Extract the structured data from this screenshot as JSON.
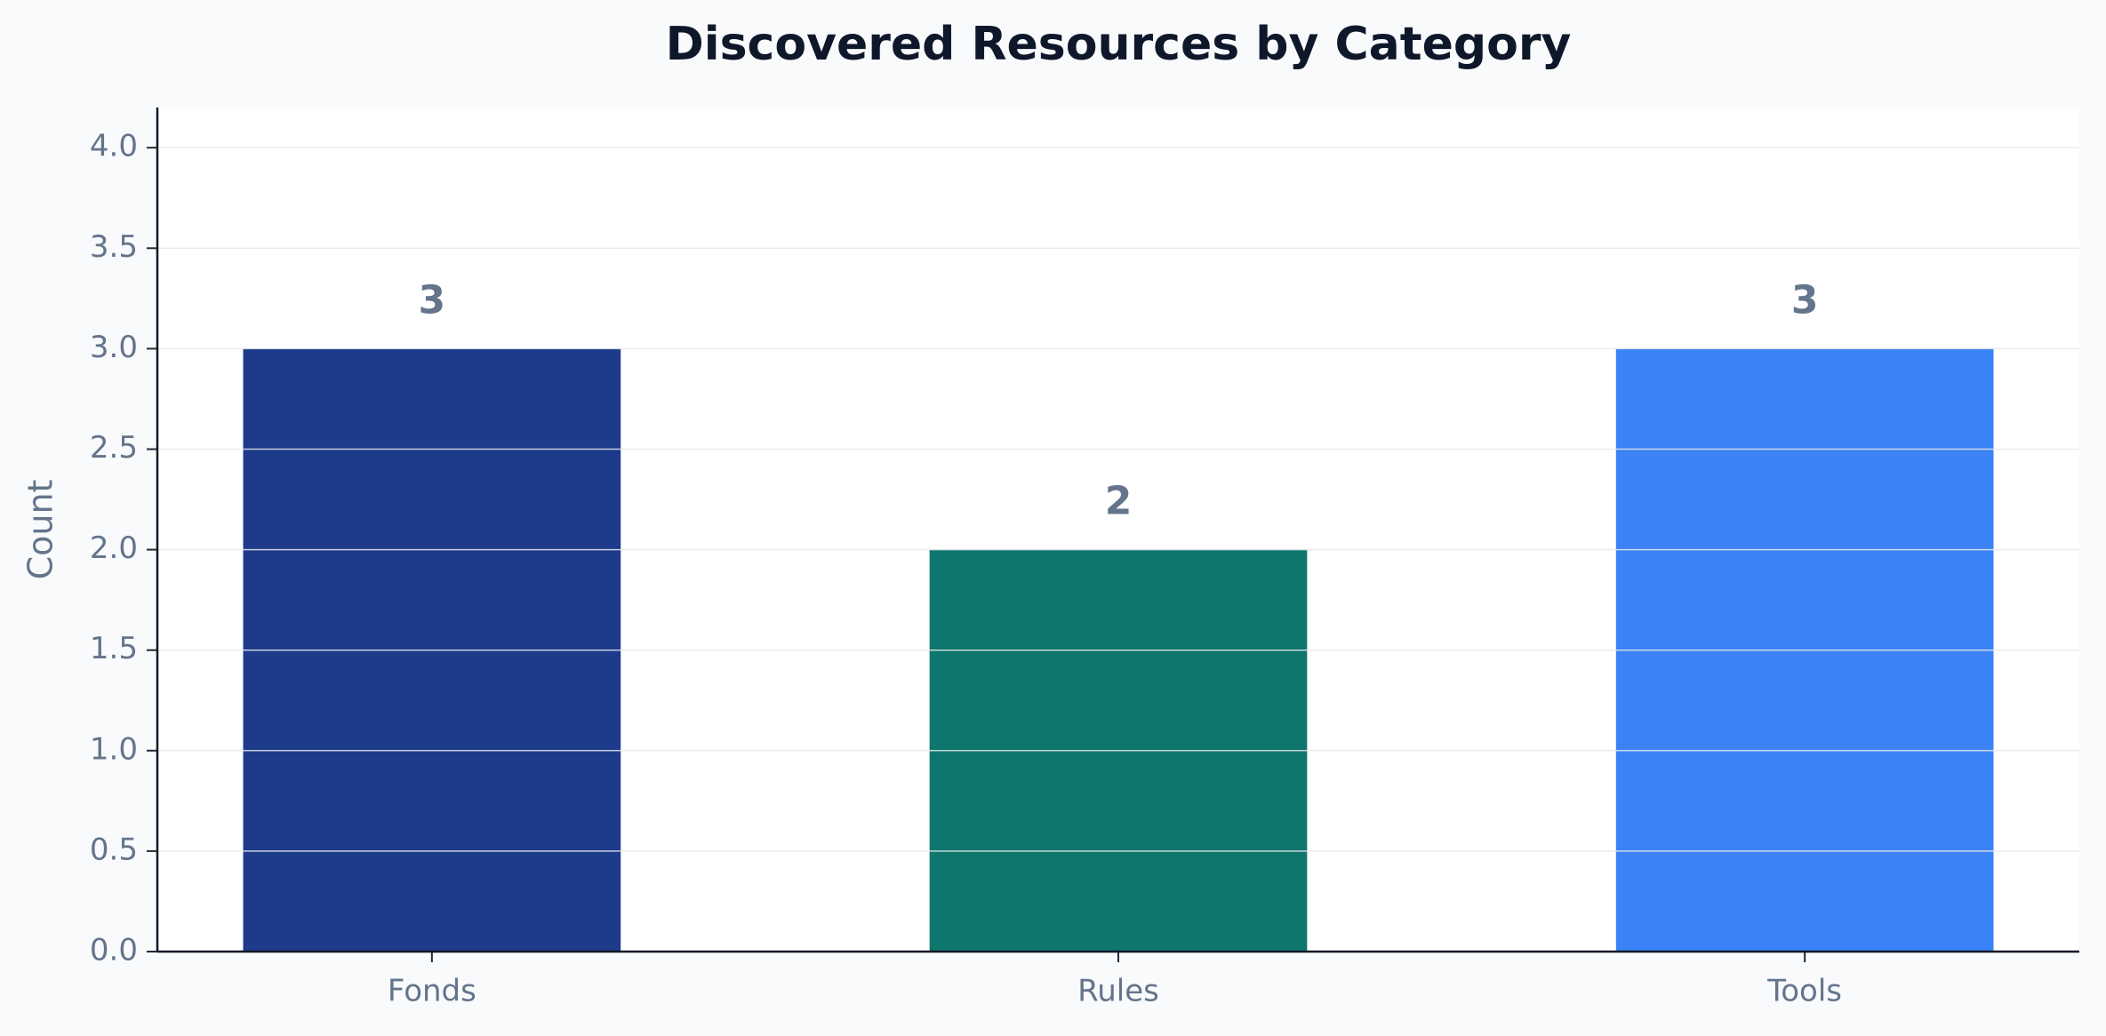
{
  "chart_data": {
    "type": "bar",
    "title": "Discovered Resources by Category",
    "y_label": "Count",
    "categories": [
      "Fonds",
      "Rules",
      "Tools"
    ],
    "values": [
      3,
      2,
      3
    ],
    "colors": [
      "#1e3a8a",
      "#0f766e",
      "#3b82f6"
    ],
    "ylim": [
      0,
      4.2
    ],
    "yticks": [
      {
        "value": 0,
        "label": "0.0"
      },
      {
        "value": 0.5,
        "label": "0.5"
      },
      {
        "value": 1,
        "label": "1.0"
      },
      {
        "value": 1.5,
        "label": "1.5"
      },
      {
        "value": 2,
        "label": "2.0"
      },
      {
        "value": 2.5,
        "label": "2.5"
      },
      {
        "value": 3,
        "label": "3.0"
      },
      {
        "value": 3.5,
        "label": "3.5"
      },
      {
        "value": 4,
        "label": "4.0"
      }
    ],
    "grid": true
  }
}
